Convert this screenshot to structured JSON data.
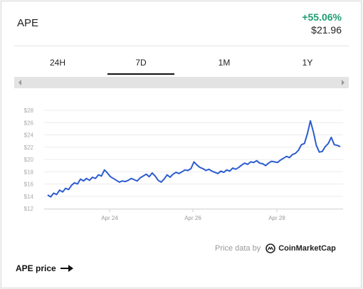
{
  "coin": {
    "name": "APE",
    "change": "+55.06%",
    "price": "$21.96"
  },
  "tabs": [
    {
      "label": "24H",
      "active": false
    },
    {
      "label": "7D",
      "active": true
    },
    {
      "label": "1M",
      "active": false
    },
    {
      "label": "1Y",
      "active": false
    }
  ],
  "credit": {
    "text": "Price data by",
    "provider": "CoinMarketCap"
  },
  "footer": {
    "link_label": "APE price"
  },
  "colors": {
    "line": "#2b5ccf",
    "change_positive": "#1f9d73",
    "grid": "#ececec"
  },
  "chart_data": {
    "type": "line",
    "y_ticks": [
      "$28",
      "$26",
      "$24",
      "$22",
      "$20",
      "$18",
      "$16",
      "$14",
      "$12"
    ],
    "ylim": [
      12,
      28
    ],
    "x_labels": [
      "Apr 24",
      "Apr 26",
      "Apr 28"
    ],
    "grid": true,
    "series": [
      {
        "values": [
          14.2,
          13.9,
          14.5,
          14.3,
          15.0,
          14.7,
          15.3,
          15.1,
          15.8,
          16.2,
          16.0,
          16.8,
          16.5,
          16.9,
          16.6,
          17.1,
          16.9,
          17.5,
          17.3,
          18.3,
          17.8,
          17.2,
          16.9,
          16.6,
          16.3,
          16.5,
          16.4,
          16.6,
          16.9,
          16.7,
          16.5,
          17.0,
          17.3,
          17.6,
          17.2,
          17.8,
          17.3,
          16.6,
          16.3,
          16.8,
          17.5,
          17.1,
          17.6,
          17.9,
          17.7,
          18.0,
          18.3,
          18.2,
          18.5,
          19.6,
          19.1,
          18.7,
          18.5,
          18.2,
          18.4,
          18.1,
          17.9,
          17.7,
          18.1,
          17.9,
          18.3,
          18.1,
          18.6,
          18.4,
          18.7,
          19.1,
          19.4,
          19.2,
          19.6,
          19.5,
          19.8,
          19.4,
          19.3,
          19.0,
          19.4,
          19.7,
          19.6,
          19.5,
          19.9,
          20.2,
          20.5,
          20.3,
          20.8,
          21.0,
          21.5,
          22.4,
          22.6,
          24.2,
          26.3,
          24.5,
          22.3,
          21.2,
          21.3,
          22.1,
          22.6,
          23.6,
          22.4,
          22.3,
          22.1
        ]
      }
    ]
  }
}
